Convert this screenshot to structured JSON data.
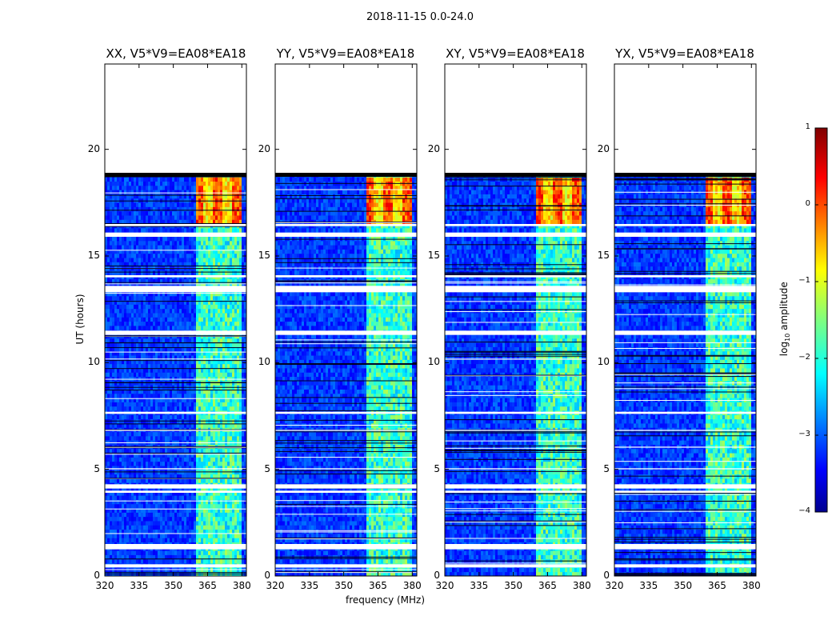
{
  "figure_title": "2018-11-15 0.0-24.0",
  "chart_data": {
    "type": "heatmap",
    "shared_xlabel": "frequency (MHz)",
    "shared_ylabel": "UT (hours)",
    "xlim": [
      320,
      382
    ],
    "ylim": [
      0,
      24
    ],
    "xticks": [
      320,
      335,
      350,
      365,
      380
    ],
    "yticks": [
      0,
      5,
      10,
      15,
      20
    ],
    "panels": [
      {
        "title": "XX, V5*V9=EA08*EA18",
        "polarization": "XX"
      },
      {
        "title": "YY, V5*V9=EA08*EA18",
        "polarization": "YY"
      },
      {
        "title": "XY, V5*V9=EA08*EA18",
        "polarization": "XY"
      },
      {
        "title": "YX, V5*V9=EA08*EA18",
        "polarization": "YX"
      }
    ],
    "data_extent_hours": [
      0,
      18.9
    ],
    "rfi_band_mhz": [
      359,
      379
    ],
    "strong_rfi_hours": [
      16.5,
      18.6
    ],
    "white_gap_hours": [
      [
        0.4,
        0.55
      ],
      [
        1.25,
        1.5
      ],
      [
        4.1,
        4.3
      ],
      [
        3.9,
        4.0
      ],
      [
        5.0,
        5.05
      ],
      [
        6.8,
        6.85
      ],
      [
        7.6,
        7.7
      ],
      [
        11.3,
        11.5
      ],
      [
        13.3,
        13.6
      ],
      [
        14.0,
        14.1
      ],
      [
        15.9,
        16.1
      ],
      [
        16.4,
        16.5
      ]
    ],
    "colorbar": {
      "label": "log",
      "label_sub": "10",
      "label_suffix": " amplitude",
      "range": [
        -4,
        1
      ],
      "ticks": [
        "1",
        "0",
        "−1",
        "−2",
        "−3",
        "−4"
      ],
      "colormap": "jet"
    }
  }
}
